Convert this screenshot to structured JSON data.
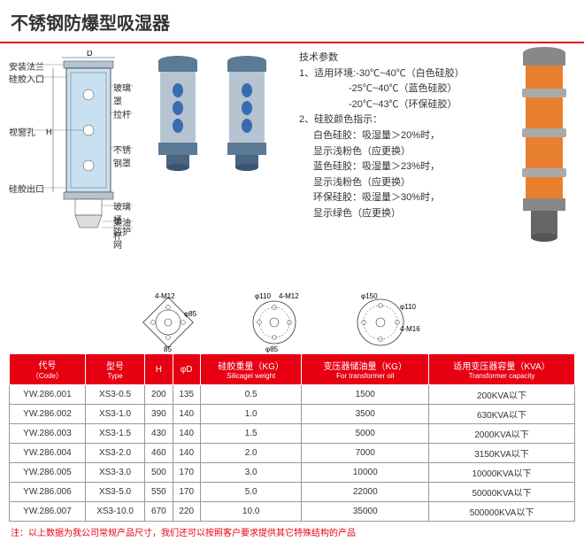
{
  "title": "不锈钢防爆型吸湿器",
  "diagram_labels": {
    "d": "D",
    "h": "H",
    "install_flange": "安装法兰",
    "silica_inlet": "硅胶入口",
    "glass_cover": "玻璃罩",
    "sight_hole": "视窗孔",
    "pull_rod": "拉杆",
    "steel_cover": "不锈钢罩",
    "silica_outlet": "硅胶出口",
    "glass_barrel": "玻璃桶",
    "oil_cup": "集油杯",
    "guard_net": "防护网"
  },
  "specs": {
    "header": "技术参数",
    "line1": "1、适用环境:-30℃~40℃（白色硅胶）",
    "line2": "-25℃~40℃（蓝色硅胶）",
    "line3": "-20℃~43℃（环保硅胶）",
    "line4": "2、硅胶颜色指示：",
    "line5": "白色硅胶：吸湿量＞20%时，",
    "line6": "显示浅粉色（应更换）",
    "line7": "蓝色硅胶：吸湿量＞23%时，",
    "line8": "显示浅粉色（应更换）",
    "line9": "环保硅胶：吸湿量＞30%时，",
    "line10": "显示绿色（应更换）"
  },
  "flanges": {
    "f1_bolt": "4-M12",
    "f1_d1": "φ85",
    "f1_d2": "85",
    "f2_bolt": "4-M12",
    "f2_d1": "φ110",
    "f2_d2": "φ85",
    "f3_bolt": "4-M16",
    "f3_d1": "φ150",
    "f3_d2": "φ110"
  },
  "table": {
    "headers": {
      "code": "代号",
      "code_sub": "（Code）",
      "type": "型号",
      "type_sub": "Type",
      "h": "H",
      "d": "φD",
      "weight": "硅胶重量（KG）",
      "weight_sub": "Silicagel weight",
      "oil": "变压器储油量（KG）",
      "oil_sub": "For transformer oil",
      "capacity": "适用变压器容量（KVA）",
      "capacity_sub": "Transformer capacity"
    },
    "rows": [
      [
        "YW.286.001",
        "XS3-0.5",
        "200",
        "135",
        "0.5",
        "1500",
        "200KVA以下"
      ],
      [
        "YW.286.002",
        "XS3-1.0",
        "390",
        "140",
        "1.0",
        "3500",
        "630KVA以下"
      ],
      [
        "YW.286.003",
        "XS3-1.5",
        "430",
        "140",
        "1.5",
        "5000",
        "2000KVA以下"
      ],
      [
        "YW.286.004",
        "XS3-2.0",
        "460",
        "140",
        "2.0",
        "7000",
        "3150KVA以下"
      ],
      [
        "YW.286.005",
        "XS3-3.0",
        "500",
        "170",
        "3.0",
        "10000",
        "10000KVA以下"
      ],
      [
        "YW.286.006",
        "XS3-5.0",
        "550",
        "170",
        "5.0",
        "22000",
        "50000KVA以下"
      ],
      [
        "YW.286.007",
        "XS3-10.0",
        "670",
        "220",
        "10.0",
        "35000",
        "500000KVA以下"
      ]
    ]
  },
  "note": "注：以上数据为我公司常规产品尺寸，我们还可以按照客户要求提供其它特殊结构的产品",
  "colors": {
    "red": "#e60012",
    "steel": "#7a8a9a",
    "steel_light": "#b5c4d0",
    "glass": "#c8e0f0",
    "orange": "#e88030",
    "blue_dot": "#3a6bb0"
  }
}
